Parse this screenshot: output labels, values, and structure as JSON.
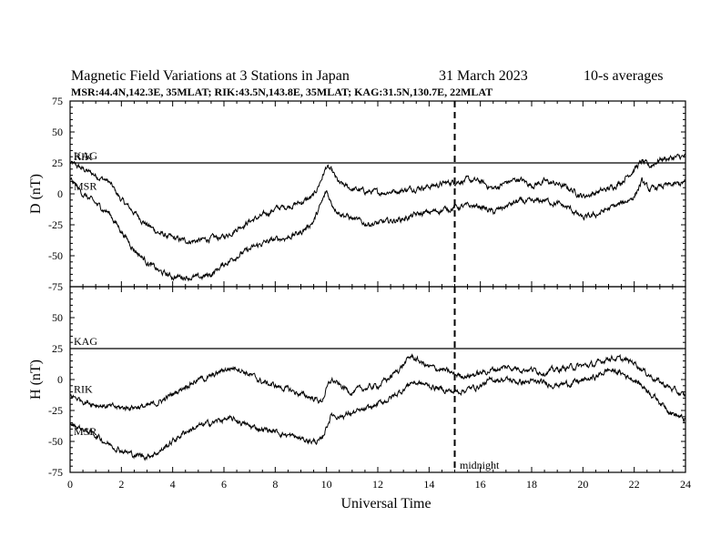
{
  "header": {
    "title": "Magnetic Field Variations at 3 Stations in Japan",
    "date": "31 March   2023",
    "averaging": "10-s averages",
    "stations": "MSR:44.4N,142.3E, 35MLAT;  RIK:43.5N,143.8E, 35MLAT;  KAG:31.5N,130.7E, 22MLAT"
  },
  "chart_data": [
    {
      "type": "line",
      "panel": "D",
      "ylabel": "D (nT)",
      "xlabel": "",
      "xlim": [
        0,
        24
      ],
      "ylim": [
        -75,
        75
      ],
      "yticks": [
        75,
        50,
        25,
        0,
        -25,
        -50,
        -75
      ],
      "reference_line": {
        "name": "KAG",
        "y": 25
      },
      "series": [
        {
          "name": "RIK",
          "x": [
            0,
            0.5,
            1,
            1.5,
            2,
            2.5,
            3,
            3.5,
            4,
            4.5,
            5,
            5.5,
            6,
            6.5,
            7,
            7.5,
            8,
            8.5,
            9,
            9.5,
            9.8,
            10,
            10.2,
            10.5,
            11,
            11.5,
            12,
            12.5,
            13,
            13.5,
            14,
            14.5,
            15,
            15.5,
            16,
            16.5,
            17,
            17.5,
            18,
            18.5,
            19,
            19.5,
            20,
            20.5,
            21,
            21.5,
            22,
            22.3,
            22.6,
            23,
            23.5,
            24
          ],
          "values": [
            25,
            20,
            15,
            10,
            -5,
            -15,
            -25,
            -32,
            -36,
            -38,
            -38,
            -36,
            -35,
            -28,
            -22,
            -18,
            -12,
            -10,
            -7,
            -2,
            12,
            22,
            18,
            8,
            4,
            2,
            1,
            2,
            3,
            5,
            6,
            8,
            10,
            11,
            10,
            4,
            9,
            12,
            7,
            10,
            8,
            4,
            -2,
            1,
            4,
            10,
            20,
            26,
            22,
            28,
            29,
            30
          ]
        },
        {
          "name": "MSR",
          "x": [
            0,
            0.5,
            1,
            1.5,
            2,
            2.5,
            3,
            3.5,
            4,
            4.5,
            5,
            5.5,
            6,
            6.5,
            7,
            7.5,
            8,
            8.5,
            9,
            9.5,
            9.8,
            10,
            10.2,
            10.5,
            11,
            11.5,
            12,
            12.5,
            13,
            13.5,
            14,
            14.5,
            15,
            15.5,
            16,
            16.5,
            17,
            17.5,
            18,
            18.5,
            19,
            19.5,
            20,
            20.5,
            21,
            21.5,
            22,
            22.3,
            22.6,
            23,
            23.5,
            24
          ],
          "values": [
            12,
            0,
            -8,
            -15,
            -30,
            -45,
            -55,
            -63,
            -67,
            -67,
            -68,
            -65,
            -57,
            -50,
            -45,
            -40,
            -37,
            -35,
            -31,
            -22,
            -8,
            2,
            -8,
            -15,
            -20,
            -24,
            -24,
            -22,
            -20,
            -17,
            -15,
            -13,
            -11,
            -10,
            -10,
            -15,
            -10,
            -6,
            -7,
            -5,
            -8,
            -12,
            -20,
            -17,
            -12,
            -8,
            -2,
            10,
            3,
            6,
            7,
            9
          ]
        }
      ]
    },
    {
      "type": "line",
      "panel": "H",
      "ylabel": "H (nT)",
      "xlabel": "Universal Time",
      "xlim": [
        0,
        24
      ],
      "ylim": [
        -75,
        75
      ],
      "yticks": [
        75,
        50,
        25,
        0,
        -25,
        -50,
        -75
      ],
      "xticks": [
        0,
        2,
        4,
        6,
        8,
        10,
        12,
        14,
        16,
        18,
        20,
        22,
        24
      ],
      "reference_line": {
        "name": "KAG",
        "y": 25
      },
      "series": [
        {
          "name": "RIK",
          "x": [
            0,
            0.5,
            1,
            1.5,
            2,
            2.5,
            3,
            3.5,
            4,
            4.5,
            5,
            5.5,
            6,
            6.5,
            7,
            7.5,
            8,
            8.5,
            9,
            9.5,
            9.8,
            10,
            10.2,
            10.5,
            11,
            11.5,
            12,
            12.5,
            13,
            13.3,
            13.6,
            14,
            14.5,
            15,
            15.5,
            16,
            16.5,
            17,
            17.5,
            18,
            18.5,
            19,
            19.5,
            20,
            20.5,
            21,
            21.5,
            22,
            22.5,
            23,
            23.5,
            24
          ],
          "values": [
            -13,
            -17,
            -20,
            -22,
            -23,
            -22,
            -22,
            -18,
            -12,
            -5,
            0,
            2,
            8,
            10,
            4,
            -2,
            -5,
            -8,
            -12,
            -15,
            -18,
            -8,
            0,
            -5,
            -10,
            -7,
            -5,
            2,
            12,
            19,
            15,
            10,
            8,
            4,
            3,
            5,
            8,
            10,
            9,
            8,
            6,
            8,
            10,
            11,
            12,
            18,
            16,
            14,
            5,
            -2,
            -8,
            -14
          ]
        },
        {
          "name": "MSR",
          "x": [
            0,
            0.5,
            1,
            1.5,
            2,
            2.5,
            3,
            3.5,
            4,
            4.5,
            5,
            5.5,
            6,
            6.5,
            7,
            7.5,
            8,
            8.5,
            9,
            9.5,
            9.8,
            10,
            10.2,
            10.5,
            11,
            11.5,
            12,
            12.5,
            13,
            13.3,
            13.6,
            14,
            14.5,
            15,
            15.5,
            16,
            16.5,
            17,
            17.5,
            18,
            18.5,
            19,
            19.5,
            20,
            20.5,
            21,
            21.5,
            22,
            22.5,
            23,
            23.5,
            24
          ],
          "values": [
            -36,
            -40,
            -45,
            -52,
            -57,
            -61,
            -62,
            -58,
            -50,
            -42,
            -38,
            -35,
            -32,
            -33,
            -38,
            -40,
            -42,
            -45,
            -48,
            -50,
            -50,
            -38,
            -28,
            -30,
            -27,
            -25,
            -20,
            -15,
            -8,
            -2,
            -3,
            -5,
            -8,
            -10,
            -8,
            -5,
            0,
            0,
            -2,
            -2,
            -3,
            -4,
            -3,
            -1,
            2,
            8,
            5,
            0,
            -8,
            -18,
            -27,
            -33
          ]
        }
      ]
    }
  ],
  "annotations": {
    "midnight_label": "midnight",
    "midnight_ut": 15
  }
}
